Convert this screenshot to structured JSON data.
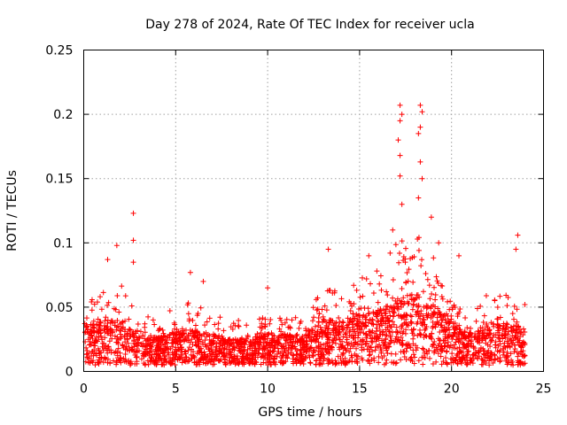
{
  "chart_data": {
    "type": "scatter",
    "title": "Day 278 of 2024, Rate Of TEC Index for receiver ucla",
    "xlabel": "GPS time / hours",
    "ylabel": "ROTI / TECUs",
    "xlim": [
      0,
      25
    ],
    "ylim": [
      0,
      0.25
    ],
    "grid": true,
    "marker": "+",
    "marker_color": "#ff0000",
    "x_ticks": [
      {
        "value": 0,
        "label": "0"
      },
      {
        "value": 5,
        "label": "5"
      },
      {
        "value": 10,
        "label": "10"
      },
      {
        "value": 15,
        "label": "15"
      },
      {
        "value": 20,
        "label": "20"
      },
      {
        "value": 25,
        "label": "25"
      }
    ],
    "y_ticks": [
      {
        "value": 0,
        "label": "0"
      },
      {
        "value": 0.05,
        "label": "0.05"
      },
      {
        "value": 0.1,
        "label": "0.1"
      },
      {
        "value": 0.15,
        "label": "0.15"
      },
      {
        "value": 0.2,
        "label": "0.2"
      },
      {
        "value": 0.25,
        "label": "0.25"
      }
    ],
    "series": [
      {
        "name": "ROTI",
        "density_profile": {
          "x_range": [
            0,
            24
          ],
          "baseline_floor": 0.005,
          "envelope": [
            {
              "x": 0.0,
              "base": 0.03,
              "spread": 0.025
            },
            {
              "x": 1.0,
              "base": 0.03,
              "spread": 0.035
            },
            {
              "x": 2.0,
              "base": 0.028,
              "spread": 0.04
            },
            {
              "x": 3.0,
              "base": 0.022,
              "spread": 0.025
            },
            {
              "x": 4.0,
              "base": 0.02,
              "spread": 0.02
            },
            {
              "x": 5.0,
              "base": 0.022,
              "spread": 0.03
            },
            {
              "x": 6.0,
              "base": 0.024,
              "spread": 0.03
            },
            {
              "x": 7.0,
              "base": 0.022,
              "spread": 0.025
            },
            {
              "x": 8.0,
              "base": 0.02,
              "spread": 0.02
            },
            {
              "x": 9.0,
              "base": 0.02,
              "spread": 0.02
            },
            {
              "x": 10.0,
              "base": 0.022,
              "spread": 0.025
            },
            {
              "x": 11.0,
              "base": 0.022,
              "spread": 0.02
            },
            {
              "x": 12.0,
              "base": 0.022,
              "spread": 0.02
            },
            {
              "x": 13.0,
              "base": 0.03,
              "spread": 0.04
            },
            {
              "x": 14.0,
              "base": 0.03,
              "spread": 0.03
            },
            {
              "x": 15.0,
              "base": 0.032,
              "spread": 0.04
            },
            {
              "x": 16.0,
              "base": 0.034,
              "spread": 0.045
            },
            {
              "x": 17.0,
              "base": 0.04,
              "spread": 0.06
            },
            {
              "x": 18.0,
              "base": 0.04,
              "spread": 0.07
            },
            {
              "x": 19.0,
              "base": 0.035,
              "spread": 0.06
            },
            {
              "x": 20.0,
              "base": 0.028,
              "spread": 0.035
            },
            {
              "x": 21.0,
              "base": 0.022,
              "spread": 0.02
            },
            {
              "x": 22.0,
              "base": 0.028,
              "spread": 0.035
            },
            {
              "x": 23.0,
              "base": 0.028,
              "spread": 0.035
            },
            {
              "x": 24.0,
              "base": 0.025,
              "spread": 0.03
            }
          ]
        },
        "notable_points": [
          {
            "x": 2.7,
            "y": 0.123
          },
          {
            "x": 2.7,
            "y": 0.102
          },
          {
            "x": 2.7,
            "y": 0.085
          },
          {
            "x": 1.8,
            "y": 0.098
          },
          {
            "x": 1.3,
            "y": 0.087
          },
          {
            "x": 5.8,
            "y": 0.077
          },
          {
            "x": 6.5,
            "y": 0.07
          },
          {
            "x": 10.0,
            "y": 0.065
          },
          {
            "x": 13.3,
            "y": 0.095
          },
          {
            "x": 15.5,
            "y": 0.09
          },
          {
            "x": 17.2,
            "y": 0.207
          },
          {
            "x": 17.3,
            "y": 0.2
          },
          {
            "x": 17.2,
            "y": 0.195
          },
          {
            "x": 17.1,
            "y": 0.18
          },
          {
            "x": 17.2,
            "y": 0.168
          },
          {
            "x": 17.2,
            "y": 0.152
          },
          {
            "x": 17.3,
            "y": 0.13
          },
          {
            "x": 18.3,
            "y": 0.207
          },
          {
            "x": 18.4,
            "y": 0.202
          },
          {
            "x": 18.3,
            "y": 0.19
          },
          {
            "x": 18.2,
            "y": 0.185
          },
          {
            "x": 18.3,
            "y": 0.163
          },
          {
            "x": 18.4,
            "y": 0.15
          },
          {
            "x": 18.2,
            "y": 0.135
          },
          {
            "x": 16.8,
            "y": 0.11
          },
          {
            "x": 18.9,
            "y": 0.12
          },
          {
            "x": 19.3,
            "y": 0.1
          },
          {
            "x": 20.4,
            "y": 0.09
          },
          {
            "x": 23.6,
            "y": 0.106
          },
          {
            "x": 23.5,
            "y": 0.095
          }
        ]
      }
    ]
  }
}
